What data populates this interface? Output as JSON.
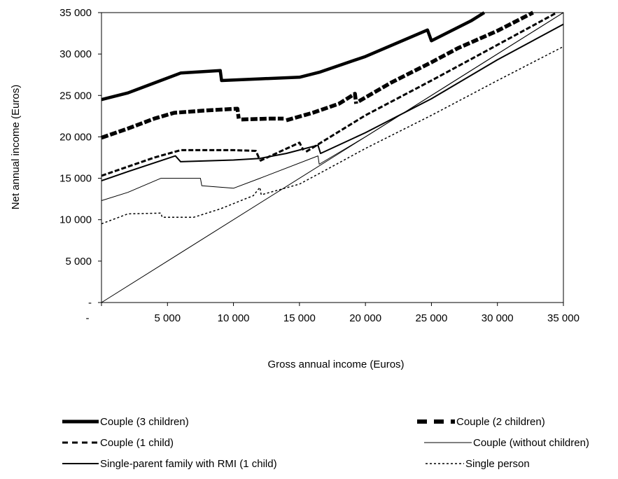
{
  "chart_data": {
    "type": "line",
    "xlabel": "Gross annual income (Euros)",
    "ylabel": "Net annual income  (Euros)",
    "xlim": [
      0,
      35000
    ],
    "ylim": [
      0,
      35000
    ],
    "x_ticks": [
      "-",
      "5 000",
      "10 000",
      "15 000",
      "20 000",
      "25 000",
      "30 000",
      "35 000"
    ],
    "y_ticks": [
      "-",
      "5 000",
      "10 000",
      "15 000",
      "20 000",
      "25 000",
      "30 000",
      "35 000"
    ],
    "grid": false,
    "legend_position": "bottom",
    "series": [
      {
        "name": "Couple (3 children)",
        "style": "thick-solid",
        "segments": [
          [
            [
              0,
              24500
            ],
            [
              2000,
              25300
            ],
            [
              4000,
              26500
            ],
            [
              6000,
              27700
            ],
            [
              9000,
              28000
            ],
            [
              9100,
              26800
            ],
            [
              12000,
              27000
            ],
            [
              15000,
              27200
            ],
            [
              16500,
              27800
            ],
            [
              20000,
              29700
            ],
            [
              24700,
              32900
            ],
            [
              25000,
              31600
            ],
            [
              28000,
              34000
            ],
            [
              29000,
              35000
            ]
          ]
        ]
      },
      {
        "name": "Couple (2 children)",
        "style": "thick-dashed",
        "segments": [
          [
            [
              0,
              19900
            ],
            [
              2000,
              21000
            ],
            [
              4000,
              22200
            ],
            [
              5500,
              22900
            ],
            [
              8000,
              23200
            ],
            [
              10300,
              23400
            ],
            [
              10400,
              22200
            ]
          ],
          [
            [
              10600,
              22100
            ],
            [
              12800,
              22200
            ],
            [
              13800,
              22200
            ]
          ],
          [
            [
              14000,
              22000
            ],
            [
              16000,
              22900
            ],
            [
              18000,
              24000
            ],
            [
              19200,
              25200
            ],
            [
              19300,
              24000
            ]
          ],
          [
            [
              19500,
              24300
            ],
            [
              22000,
              26600
            ],
            [
              25000,
              29000
            ],
            [
              27000,
              30700
            ],
            [
              30000,
              32800
            ],
            [
              32700,
              35000
            ]
          ]
        ]
      },
      {
        "name": "Couple (1 child)",
        "style": "dashed",
        "segments": [
          [
            [
              0,
              15300
            ],
            [
              2000,
              16400
            ],
            [
              4000,
              17500
            ],
            [
              6000,
              18400
            ],
            [
              8000,
              18400
            ],
            [
              10000,
              18400
            ],
            [
              11700,
              18300
            ],
            [
              12000,
              17200
            ]
          ],
          [
            [
              12000,
              17100
            ],
            [
              15000,
              19300
            ],
            [
              15300,
              18400
            ]
          ],
          [
            [
              15500,
              18200
            ],
            [
              20000,
              22600
            ],
            [
              25000,
              26800
            ],
            [
              30000,
              31100
            ],
            [
              34500,
              35000
            ]
          ]
        ]
      },
      {
        "name": "Couple (without children)",
        "style": "thin-solid",
        "segments": [
          [
            [
              0,
              12300
            ],
            [
              2000,
              13300
            ],
            [
              4500,
              15000
            ],
            [
              7500,
              15000
            ],
            [
              7600,
              14100
            ],
            [
              10000,
              13800
            ],
            [
              12000,
              15000
            ],
            [
              16400,
              17700
            ],
            [
              16500,
              16700
            ],
            [
              20000,
              20000
            ],
            [
              25000,
              25000
            ],
            [
              30000,
              30000
            ],
            [
              35000,
              35000
            ]
          ]
        ]
      },
      {
        "name": "Single-parent family with RMI (1 child)",
        "style": "solid",
        "segments": [
          [
            [
              0,
              14700
            ],
            [
              2000,
              15800
            ],
            [
              5600,
              17700
            ],
            [
              6000,
              17000
            ],
            [
              10000,
              17200
            ],
            [
              12000,
              17400
            ],
            [
              14000,
              18000
            ],
            [
              16400,
              19000
            ],
            [
              16600,
              18000
            ],
            [
              20000,
              20500
            ],
            [
              25000,
              24600
            ],
            [
              30000,
              29300
            ],
            [
              35000,
              33600
            ]
          ]
        ]
      },
      {
        "name": "Single person",
        "style": "dotted",
        "segments": [
          [
            [
              0,
              9500
            ],
            [
              2000,
              10700
            ],
            [
              4500,
              10800
            ],
            [
              4600,
              10300
            ],
            [
              7000,
              10300
            ],
            [
              9000,
              11300
            ],
            [
              11500,
              12900
            ],
            [
              12000,
              13900
            ],
            [
              12100,
              13000
            ],
            [
              15000,
              14300
            ],
            [
              17000,
              16000
            ],
            [
              20000,
              18600
            ],
            [
              25000,
              22600
            ],
            [
              30000,
              26800
            ],
            [
              35000,
              30900
            ]
          ]
        ]
      },
      {
        "name": "",
        "style": "thin-solid",
        "segments": [
          [
            [
              0,
              0
            ],
            [
              35000,
              35000
            ]
          ]
        ]
      }
    ]
  }
}
